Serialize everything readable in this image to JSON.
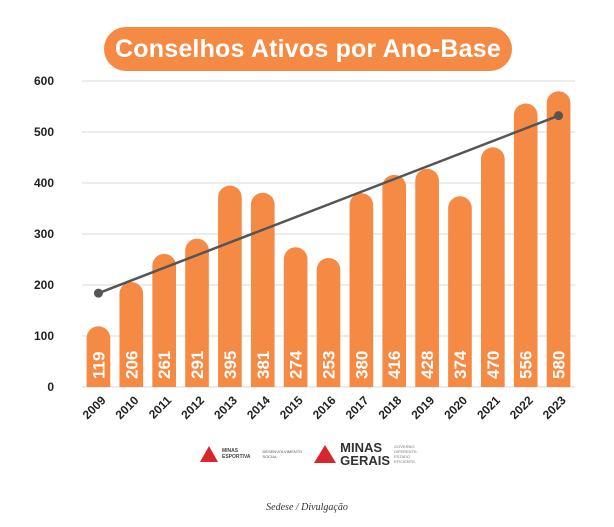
{
  "title": "Conselhos Ativos por Ano-Base",
  "chart_data": {
    "type": "bar",
    "title": "Conselhos Ativos por Ano-Base",
    "categories": [
      "2009",
      "2010",
      "2011",
      "2012",
      "2013",
      "2014",
      "2015",
      "2016",
      "2017",
      "2018",
      "2019",
      "2020",
      "2021",
      "2022",
      "2023"
    ],
    "values": [
      119,
      206,
      261,
      291,
      395,
      381,
      274,
      253,
      380,
      416,
      428,
      374,
      470,
      556,
      580
    ],
    "ylim": [
      0,
      600
    ],
    "yticks": [
      0,
      100,
      200,
      300,
      400,
      500,
      600
    ],
    "grid": true,
    "trendline": {
      "start_value": 184,
      "end_value": 532
    },
    "colors": {
      "bar": "#f58a45",
      "grid": "#d9d9d9",
      "trend": "#555555",
      "label": "#ffffff"
    }
  },
  "logos": {
    "left_lines": [
      "MINAS",
      "ESPORTIVA"
    ],
    "middle_lines": [
      "DESENVOLVIMENTO",
      "SOCIAL"
    ],
    "right_big_lines": [
      "MINAS",
      "GERAIS"
    ],
    "right_small_lines": [
      "GOVERNO",
      "DIFERENTE.",
      "ESTADO",
      "EFICIENTE."
    ]
  },
  "caption": "Sedese / Divulgação"
}
